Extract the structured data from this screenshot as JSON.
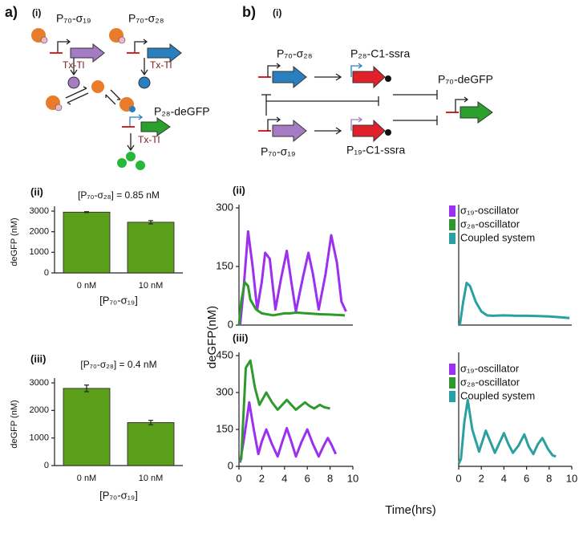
{
  "figure": {
    "panel_a": "a)",
    "panel_b": "b)",
    "shared_ylabel": "deGFP(nM)",
    "shared_xlabel": "Time(hrs)"
  },
  "diagram_a": {
    "label": "(i)",
    "gene1": "P₇₀-σ₁₉",
    "gene2": "P₇₀-σ₂₈",
    "txtl1": "Tx-Tl",
    "txtl2": "Tx-Tl",
    "reporter": "P₂₈-deGFP",
    "txtl3": "Tx-Tl"
  },
  "diagram_b": {
    "label": "(i)",
    "gene1": "P₇₀-σ₂₈",
    "gene2": "P₇₀-σ₁₉",
    "repressor1": "P₂₈-C1-ssra",
    "repressor2": "P₁₉-C1-ssra",
    "reporter": "P₇₀-deGFP"
  },
  "chart_data": [
    {
      "type": "bar",
      "label": "(ii)",
      "title": "[P₇₀-σ₂₈] = 0.85 nM",
      "ylabel": "deGFP (nM)",
      "xlabel": "[P₇₀-σ₁₉]",
      "categories": [
        "0 nM",
        "10 nM"
      ],
      "values": [
        2950,
        2460
      ],
      "errors": [
        20,
        80
      ],
      "color": "#5a9e1a",
      "ylim": [
        0,
        3000
      ],
      "yticks": [
        0,
        1000,
        2000,
        3000
      ]
    },
    {
      "type": "bar",
      "label": "(iii)",
      "title": "[P₇₀-σ₂₈] = 0.4 nM",
      "ylabel": "deGFP (nM)",
      "xlabel": "[P₇₀-σ₁₉]",
      "categories": [
        "0 nM",
        "10 nM"
      ],
      "values": [
        2800,
        1560
      ],
      "errors": [
        120,
        80
      ],
      "color": "#5a9e1a",
      "ylim": [
        0,
        3000
      ],
      "yticks": [
        0,
        1000,
        2000,
        3000
      ]
    },
    {
      "type": "line",
      "label": "(ii)",
      "xlim": [
        0,
        10
      ],
      "ylim": [
        0,
        300
      ],
      "yticks": [
        0,
        150,
        300
      ],
      "series": [
        {
          "name": "σ₁₉-oscillator",
          "color": "#9b30f0",
          "x": [
            0.1,
            0.4,
            0.8,
            1.2,
            1.6,
            2.0,
            2.3,
            2.7,
            3.2,
            3.7,
            4.2,
            4.6,
            5.0,
            5.6,
            6.1,
            6.5,
            7.0,
            7.6,
            8.1,
            8.6,
            9.0,
            9.4
          ],
          "values": [
            0,
            90,
            240,
            150,
            40,
            110,
            185,
            170,
            40,
            120,
            190,
            110,
            35,
            120,
            185,
            130,
            40,
            130,
            230,
            160,
            60,
            35
          ]
        },
        {
          "name": "σ₂₈-oscillator",
          "color": "#2e9a2e",
          "x": [
            0,
            0.2,
            0.5,
            0.8,
            1.0,
            1.5,
            2.0,
            3.0,
            4.0,
            4.5,
            5.0,
            6.0,
            7.0,
            8.0,
            9.3
          ],
          "values": [
            0,
            60,
            110,
            100,
            65,
            40,
            30,
            25,
            30,
            30,
            32,
            30,
            28,
            27,
            25
          ]
        }
      ]
    },
    {
      "type": "line",
      "xlim": [
        0,
        10
      ],
      "ylim": [
        0,
        300
      ],
      "series": [
        {
          "name": "Coupled system",
          "color": "#2aa0a0",
          "x": [
            0.1,
            0.4,
            0.7,
            1.0,
            1.5,
            2.0,
            2.5,
            3.0,
            4.0,
            5.0,
            6.0,
            7.0,
            8.0,
            9.0,
            9.8
          ],
          "values": [
            0,
            60,
            108,
            100,
            60,
            35,
            25,
            24,
            25,
            24,
            24,
            23,
            22,
            20,
            18
          ]
        }
      ]
    },
    {
      "type": "line",
      "label": "(iii)",
      "xlim": [
        0,
        10
      ],
      "ylim": [
        0,
        450
      ],
      "yticks": [
        0,
        150,
        300,
        450
      ],
      "xticks": [
        0,
        2,
        4,
        6,
        8,
        10
      ],
      "series": [
        {
          "name": "σ₁₉-oscillator",
          "color": "#9b30f0",
          "x": [
            0.1,
            0.5,
            0.9,
            1.3,
            1.7,
            2.0,
            2.4,
            2.9,
            3.4,
            3.8,
            4.2,
            4.6,
            5.0,
            5.5,
            6.0,
            6.5,
            7.0,
            7.4,
            7.8,
            8.1,
            8.5
          ],
          "values": [
            15,
            130,
            260,
            150,
            50,
            100,
            150,
            90,
            40,
            100,
            155,
            100,
            40,
            100,
            150,
            90,
            40,
            80,
            115,
            90,
            50
          ]
        },
        {
          "name": "σ₂₈-oscillator",
          "color": "#2e9a2e",
          "x": [
            0,
            0.2,
            0.6,
            1.0,
            1.4,
            1.8,
            2.4,
            2.9,
            3.4,
            4.2,
            4.6,
            5.0,
            5.8,
            6.2,
            6.6,
            7.1,
            7.5,
            8.0
          ],
          "values": [
            20,
            30,
            400,
            430,
            320,
            250,
            300,
            260,
            230,
            270,
            250,
            230,
            260,
            245,
            235,
            250,
            240,
            235
          ]
        }
      ]
    },
    {
      "type": "line",
      "xlim": [
        0,
        10
      ],
      "ylim": [
        0,
        450
      ],
      "xticks": [
        0,
        2,
        4,
        6,
        8,
        10
      ],
      "series": [
        {
          "name": "Coupled system",
          "color": "#2aa0a0",
          "x": [
            0,
            0.2,
            0.5,
            0.8,
            1.2,
            1.8,
            2.4,
            2.8,
            3.2,
            4.0,
            4.4,
            4.8,
            5.3,
            5.8,
            6.2,
            6.6,
            7.0,
            7.4,
            7.9,
            8.3,
            8.6
          ],
          "values": [
            10,
            30,
            180,
            270,
            150,
            60,
            145,
            100,
            55,
            135,
            90,
            55,
            85,
            130,
            80,
            50,
            90,
            115,
            70,
            45,
            40
          ]
        }
      ]
    }
  ]
}
